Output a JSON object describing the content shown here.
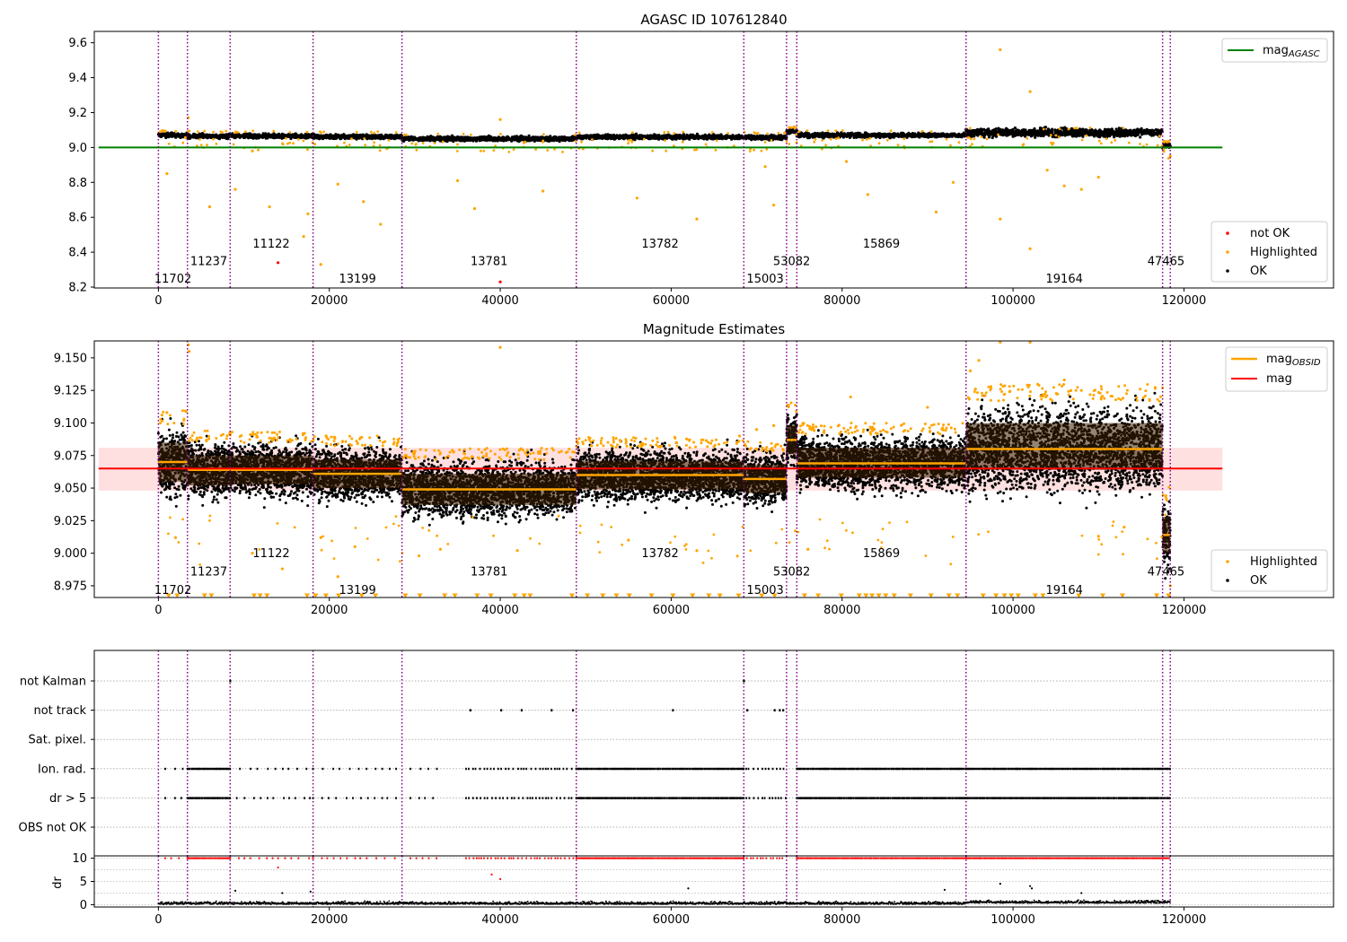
{
  "colors": {
    "ok": "#000000",
    "highlighted": "#ffa500",
    "not_ok": "#ff0000",
    "mag_agasc": "#008000",
    "mag_obsid": "#ffa500",
    "mag": "#ff0000",
    "obs_boundary": "#800080",
    "mag_band": "#ffcccc"
  },
  "chart_data": [
    {
      "type": "scatter",
      "title": "AGASC ID 107612840",
      "xlim": [
        -7500,
        137500
      ],
      "ylim": [
        8.195,
        9.665
      ],
      "x_ticks": [
        0,
        20000,
        40000,
        60000,
        80000,
        100000,
        120000
      ],
      "y_ticks": [
        8.2,
        8.4,
        8.6,
        8.8,
        9.0,
        9.2,
        9.4,
        9.6
      ],
      "y_tick_labels": [
        "8.2",
        "8.4",
        "8.6",
        "8.8",
        "9.0",
        "9.2",
        "9.4",
        "9.6"
      ],
      "mag_agasc": 9.0,
      "mag_agasc_xrange": [
        -7000,
        124500
      ],
      "obs_boundaries": [
        0,
        3400,
        8400,
        18100,
        28500,
        48900,
        68500,
        73500,
        74700,
        94500,
        117500,
        118400
      ],
      "obsids": [
        {
          "label": "11702",
          "x": 1700,
          "y": 8.25
        },
        {
          "label": "11237",
          "x": 5900,
          "y": 8.35
        },
        {
          "label": "11122",
          "x": 13200,
          "y": 8.45
        },
        {
          "label": "13199",
          "x": 23300,
          "y": 8.25
        },
        {
          "label": "13781",
          "x": 38700,
          "y": 8.35
        },
        {
          "label": "13782",
          "x": 58700,
          "y": 8.45
        },
        {
          "label": "15003",
          "x": 71000,
          "y": 8.25
        },
        {
          "label": "53082",
          "x": 74100,
          "y": 8.35
        },
        {
          "label": "15869",
          "x": 84600,
          "y": 8.45
        },
        {
          "label": "19164",
          "x": 106000,
          "y": 8.25
        },
        {
          "label": "47465",
          "x": 117900,
          "y": 8.35
        }
      ],
      "segments": [
        {
          "x0": 0,
          "x1": 3400,
          "mag": 9.07
        },
        {
          "x0": 3400,
          "x1": 8400,
          "mag": 9.065
        },
        {
          "x0": 8400,
          "x1": 18100,
          "mag": 9.065
        },
        {
          "x0": 18100,
          "x1": 28500,
          "mag": 9.062
        },
        {
          "x0": 28500,
          "x1": 48900,
          "mag": 9.05
        },
        {
          "x0": 48900,
          "x1": 68500,
          "mag": 9.06
        },
        {
          "x0": 68500,
          "x1": 73500,
          "mag": 9.058
        },
        {
          "x0": 73500,
          "x1": 74700,
          "mag": 9.09
        },
        {
          "x0": 74700,
          "x1": 94500,
          "mag": 9.07
        },
        {
          "x0": 94500,
          "x1": 117500,
          "mag": 9.085
        },
        {
          "x0": 117500,
          "x1": 118400,
          "mag": 9.01
        }
      ],
      "not_ok_points": [
        [
          14000,
          8.34
        ],
        [
          40000,
          8.23
        ]
      ],
      "highlighted_outliers": [
        [
          1000,
          8.85
        ],
        [
          3500,
          9.17
        ],
        [
          6000,
          8.66
        ],
        [
          9000,
          8.76
        ],
        [
          11000,
          8.98
        ],
        [
          13000,
          8.66
        ],
        [
          17000,
          8.49
        ],
        [
          17500,
          8.62
        ],
        [
          19000,
          8.33
        ],
        [
          21000,
          8.79
        ],
        [
          24000,
          8.69
        ],
        [
          26000,
          8.56
        ],
        [
          35000,
          8.81
        ],
        [
          37000,
          8.65
        ],
        [
          40000,
          9.16
        ],
        [
          45000,
          8.75
        ],
        [
          56000,
          8.71
        ],
        [
          63000,
          8.59
        ],
        [
          71000,
          8.89
        ],
        [
          72000,
          8.67
        ],
        [
          80500,
          8.92
        ],
        [
          83000,
          8.73
        ],
        [
          91000,
          8.63
        ],
        [
          93000,
          8.8
        ],
        [
          98500,
          9.56
        ],
        [
          98500,
          8.59
        ],
        [
          102000,
          9.32
        ],
        [
          102000,
          8.42
        ],
        [
          104000,
          8.87
        ],
        [
          106000,
          8.78
        ],
        [
          108000,
          8.76
        ],
        [
          110000,
          8.83
        ],
        [
          118400,
          8.95
        ]
      ],
      "legend_upper": [
        {
          "label": "mag",
          "sub": "AGASC"
        }
      ],
      "legend_lower": [
        {
          "label": "not OK"
        },
        {
          "label": "Highlighted"
        },
        {
          "label": "OK"
        }
      ]
    },
    {
      "type": "scatter",
      "title": "Magnitude Estimates",
      "xlim": [
        -7500,
        137500
      ],
      "ylim": [
        8.966,
        9.163
      ],
      "x_ticks": [
        0,
        20000,
        40000,
        60000,
        80000,
        100000,
        120000
      ],
      "y_ticks": [
        8.975,
        9.0,
        9.025,
        9.05,
        9.075,
        9.1,
        9.125,
        9.15
      ],
      "y_tick_labels": [
        "8.975",
        "9.000",
        "9.025",
        "9.050",
        "9.075",
        "9.100",
        "9.125",
        "9.150"
      ],
      "mag": 9.065,
      "mag_band": [
        9.048,
        9.081
      ],
      "mag_xrange": [
        -7000,
        124500
      ],
      "obs_boundaries": [
        0,
        3400,
        8400,
        18100,
        28500,
        48900,
        68500,
        73500,
        74700,
        94500,
        117500,
        118400
      ],
      "obsids": [
        {
          "label": "11702",
          "x": 1700,
          "y": 8.972
        },
        {
          "label": "11237",
          "x": 5900,
          "y": 8.986
        },
        {
          "label": "11122",
          "x": 13200,
          "y": 9.0
        },
        {
          "label": "13199",
          "x": 23300,
          "y": 8.972
        },
        {
          "label": "13781",
          "x": 38700,
          "y": 8.986
        },
        {
          "label": "13782",
          "x": 58700,
          "y": 9.0
        },
        {
          "label": "15003",
          "x": 71000,
          "y": 8.972
        },
        {
          "label": "53082",
          "x": 74100,
          "y": 8.986
        },
        {
          "label": "15869",
          "x": 84600,
          "y": 9.0
        },
        {
          "label": "19164",
          "x": 106000,
          "y": 8.972
        },
        {
          "label": "47465",
          "x": 117900,
          "y": 8.986
        }
      ],
      "segments": [
        {
          "x0": 0,
          "x1": 3400,
          "mag": 9.07,
          "lo": 9.055,
          "hi": 9.085
        },
        {
          "x0": 3400,
          "x1": 8400,
          "mag": 9.064,
          "lo": 9.052,
          "hi": 9.075
        },
        {
          "x0": 8400,
          "x1": 18100,
          "mag": 9.064,
          "lo": 9.053,
          "hi": 9.075
        },
        {
          "x0": 18100,
          "x1": 28500,
          "mag": 9.061,
          "lo": 9.05,
          "hi": 9.072
        },
        {
          "x0": 28500,
          "x1": 48900,
          "mag": 9.049,
          "lo": 9.037,
          "hi": 9.061
        },
        {
          "x0": 48900,
          "x1": 68500,
          "mag": 9.06,
          "lo": 9.049,
          "hi": 9.071
        },
        {
          "x0": 68500,
          "x1": 73500,
          "mag": 9.057,
          "lo": 9.046,
          "hi": 9.068
        },
        {
          "x0": 73500,
          "x1": 74700,
          "mag": 9.087,
          "lo": 9.076,
          "hi": 9.098
        },
        {
          "x0": 74700,
          "x1": 94500,
          "mag": 9.069,
          "lo": 9.058,
          "hi": 9.081
        },
        {
          "x0": 94500,
          "x1": 117500,
          "mag": 9.08,
          "lo": 9.064,
          "hi": 9.1
        },
        {
          "x0": 117500,
          "x1": 118400,
          "mag": 9.014,
          "lo": 9.0,
          "hi": 9.028
        }
      ],
      "highlighted_outliers": [
        [
          1000,
          9.108
        ],
        [
          2000,
          9.012
        ],
        [
          3500,
          9.16
        ],
        [
          3600,
          9.155
        ],
        [
          11000,
          9.0
        ],
        [
          14500,
          8.988
        ],
        [
          19000,
          9.012
        ],
        [
          21000,
          8.982
        ],
        [
          23000,
          9.005
        ],
        [
          30500,
          8.998
        ],
        [
          33000,
          9.003
        ],
        [
          40000,
          9.158
        ],
        [
          42000,
          9.002
        ],
        [
          55000,
          9.01
        ],
        [
          63000,
          9.002
        ],
        [
          68000,
          9.09
        ],
        [
          70000,
          9.095
        ],
        [
          72000,
          9.098
        ],
        [
          76000,
          9.003
        ],
        [
          81000,
          9.12
        ],
        [
          90000,
          9.112
        ],
        [
          95000,
          9.14
        ],
        [
          96000,
          9.148
        ],
        [
          98500,
          9.162
        ],
        [
          102000,
          9.162
        ],
        [
          106000,
          9.133
        ],
        [
          108000,
          9.125
        ],
        [
          110000,
          9.013
        ],
        [
          113000,
          9.02
        ],
        [
          118400,
          8.975
        ]
      ],
      "floor_markers_y": 8.967,
      "floor_markers_x": [
        1200,
        2200,
        5400,
        6200,
        11200,
        11900,
        12700,
        17400,
        18400,
        19600,
        21100,
        23800,
        25400,
        28900,
        30600,
        33500,
        34700,
        37300,
        38900,
        41700,
        42800,
        43500,
        48400,
        50200,
        52000,
        53600,
        55100,
        57700,
        60200,
        62500,
        64400,
        65700,
        67900,
        70600,
        72100,
        75600,
        77200,
        79900,
        82000,
        82800,
        83500,
        84300,
        85100,
        86100,
        88000,
        90400,
        92500,
        93500,
        96500,
        98000,
        99000,
        99800,
        100600,
        102600,
        103500,
        107700,
        110500,
        112800,
        116800,
        118200
      ],
      "legend_upper": [
        {
          "label": "mag",
          "sub": "OBSID"
        },
        {
          "label": "mag"
        }
      ],
      "legend_lower": [
        {
          "label": "Highlighted"
        },
        {
          "label": "OK"
        }
      ]
    },
    {
      "type": "scatter",
      "title": "",
      "xlim": [
        -7500,
        137500
      ],
      "flag_rows": [
        "not Kalman",
        "not track",
        "Sat. pixel.",
        "Ion. rad.",
        "dr > 5",
        "OBS not OK"
      ],
      "obs_boundaries": [
        0,
        3400,
        8400,
        18100,
        28500,
        48900,
        68500,
        73500,
        74700,
        94500,
        117500,
        118400
      ],
      "flags": {
        "not Kalman": [
          8400,
          68500
        ],
        "not track": [
          36500,
          40100,
          42500,
          46000,
          48500,
          60200,
          68900,
          72100,
          72700,
          73100
        ],
        "Sat. pixel.": [],
        "Ion. rad.": [
          [
            800,
            3000,
            "sparse"
          ],
          [
            3400,
            8400,
            "dense"
          ],
          [
            8400,
            18100,
            "sparse"
          ],
          [
            18100,
            28500,
            "sparse"
          ],
          [
            29500,
            33000,
            "sparse"
          ],
          [
            36000,
            48900,
            "medium"
          ],
          [
            48900,
            68500,
            "dense"
          ],
          [
            68500,
            73400,
            "medium"
          ],
          [
            74700,
            94500,
            "dense"
          ],
          [
            94500,
            118400,
            "dense"
          ]
        ],
        "dr > 5": [
          [
            800,
            3000,
            "sparse"
          ],
          [
            3400,
            8400,
            "dense"
          ],
          [
            8400,
            18100,
            "sparse"
          ],
          [
            18100,
            28500,
            "sparse"
          ],
          [
            29500,
            33000,
            "sparse"
          ],
          [
            36000,
            48900,
            "medium"
          ],
          [
            48900,
            68500,
            "dense"
          ],
          [
            68500,
            73400,
            "medium"
          ],
          [
            74700,
            94500,
            "dense"
          ],
          [
            94500,
            118400,
            "dense"
          ]
        ],
        "OBS not OK": []
      }
    },
    {
      "type": "scatter",
      "title": "",
      "ylabel": "dr",
      "xlim": [
        -7500,
        137500
      ],
      "ylim": [
        -0.5,
        10.5
      ],
      "x_ticks": [
        0,
        20000,
        40000,
        60000,
        80000,
        100000,
        120000
      ],
      "y_ticks": [
        0,
        5,
        10
      ],
      "y_tick_labels": [
        "0",
        "5",
        "10"
      ],
      "obs_boundaries": [
        0,
        3400,
        8400,
        18100,
        28500,
        48900,
        68500,
        73500,
        74700,
        94500,
        117500,
        118400
      ],
      "capped_value": 10,
      "dr_outliers": [
        [
          9000,
          3.0
        ],
        [
          14000,
          8.0
        ],
        [
          14500,
          2.5
        ],
        [
          17800,
          2.8
        ],
        [
          39000,
          6.5
        ],
        [
          40000,
          5.5
        ],
        [
          62000,
          3.5
        ],
        [
          98500,
          4.5
        ],
        [
          102000,
          4.0
        ],
        [
          102200,
          3.5
        ],
        [
          92000,
          3.2
        ],
        [
          108000,
          2.5
        ]
      ]
    }
  ]
}
